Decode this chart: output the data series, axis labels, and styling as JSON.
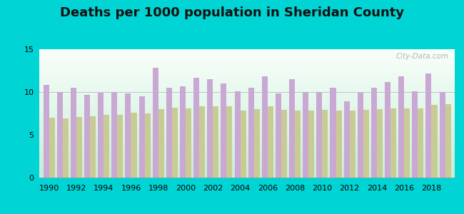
{
  "title": "Deaths per 1000 population in Sheridan County",
  "years": [
    1990,
    1991,
    1992,
    1993,
    1994,
    1995,
    1996,
    1997,
    1998,
    1999,
    2000,
    2001,
    2002,
    2003,
    2004,
    2005,
    2006,
    2007,
    2008,
    2009,
    2010,
    2011,
    2012,
    2013,
    2014,
    2015,
    2016,
    2017,
    2018,
    2019
  ],
  "sheridan": [
    10.8,
    10.0,
    10.5,
    9.7,
    9.9,
    10.0,
    9.8,
    9.5,
    12.8,
    10.5,
    10.7,
    11.7,
    11.5,
    11.0,
    10.1,
    10.5,
    11.8,
    9.8,
    11.5,
    10.0,
    10.0,
    10.5,
    8.9,
    9.9,
    10.5,
    11.2,
    11.8,
    10.1,
    12.2,
    10.0
  ],
  "wyoming": [
    7.0,
    6.9,
    7.1,
    7.2,
    7.3,
    7.3,
    7.6,
    7.5,
    8.0,
    8.2,
    8.1,
    8.3,
    8.3,
    8.3,
    7.8,
    8.0,
    8.3,
    7.9,
    7.8,
    7.8,
    7.9,
    7.8,
    7.8,
    7.9,
    8.0,
    8.1,
    8.1,
    8.1,
    8.5,
    8.6
  ],
  "sheridan_color": "#c9a8d4",
  "wyoming_color": "#c8cc94",
  "background_outer": "#00d4d4",
  "plot_bg_top": "#f0f8f0",
  "plot_bg_bottom": "#d8f0e8",
  "ylim": [
    0,
    15
  ],
  "yticks": [
    0,
    5,
    10,
    15
  ],
  "title_fontsize": 13,
  "watermark": "City-Data.com"
}
